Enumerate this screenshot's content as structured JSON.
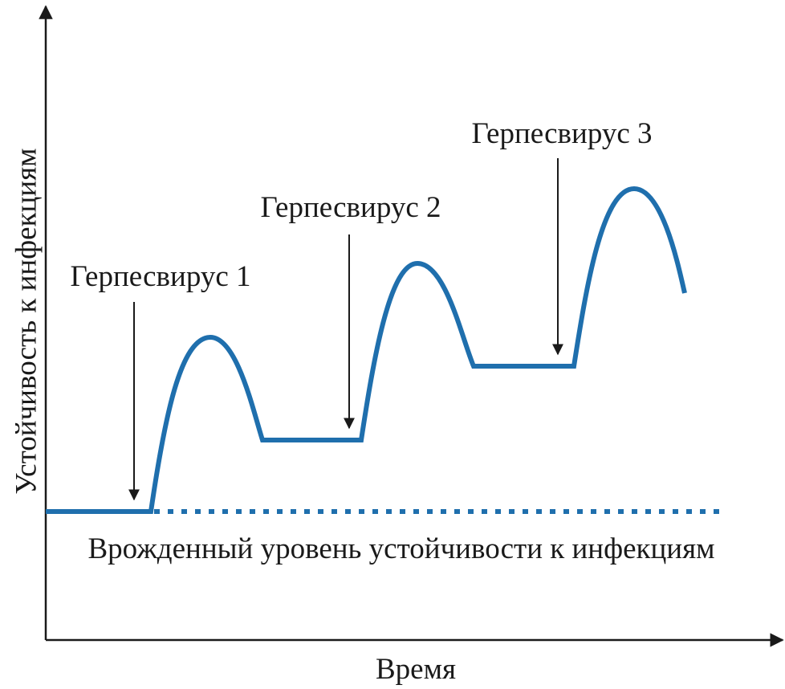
{
  "axes": {
    "y_label": "Устойчивость к инфекциям",
    "x_label": "Время"
  },
  "annotations": [
    "Герпесвирус 1",
    "Герпесвирус 2",
    "Герпесвирус 3"
  ],
  "baseline_label": "Врожденный уровень устойчивости к инфекциям"
}
